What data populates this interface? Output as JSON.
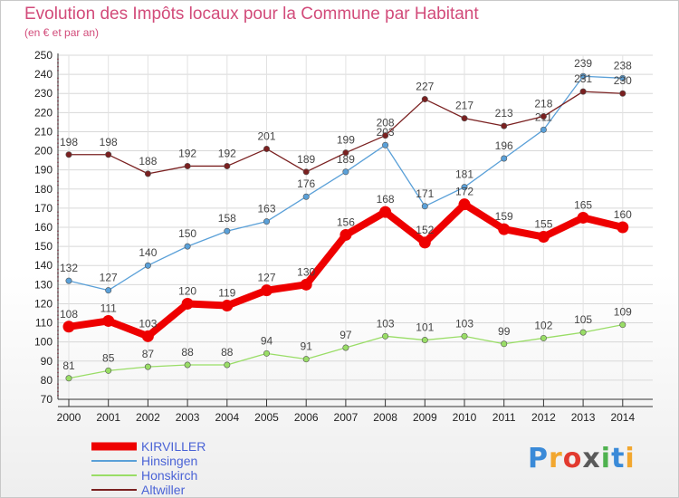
{
  "chart_data": {
    "type": "line",
    "title": "Evolution des Impôts locaux pour la Commune par Habitant",
    "subtitle": "(en € et par an)",
    "x": [
      "2000",
      "2001",
      "2002",
      "2003",
      "2004",
      "2005",
      "2006",
      "2007",
      "2008",
      "2009",
      "2010",
      "2011",
      "2012",
      "2013",
      "2014"
    ],
    "ylim": [
      70,
      250
    ],
    "yticks": [
      70,
      80,
      90,
      100,
      110,
      120,
      130,
      140,
      150,
      160,
      170,
      180,
      190,
      200,
      210,
      220,
      230,
      240,
      250
    ],
    "grid": true,
    "legend_position": "bottom-left",
    "series": [
      {
        "name": "KIRVILLER",
        "color": "#ee0000",
        "highlight": true,
        "values": [
          108,
          111,
          103,
          120,
          119,
          127,
          130,
          156,
          168,
          152,
          172,
          159,
          155,
          165,
          160
        ]
      },
      {
        "name": "Hinsingen",
        "color": "#5aa0d8",
        "highlight": false,
        "values": [
          132,
          127,
          140,
          150,
          158,
          163,
          176,
          189,
          203,
          171,
          181,
          196,
          211,
          239,
          238
        ]
      },
      {
        "name": "Honskirch",
        "color": "#99dd66",
        "highlight": false,
        "values": [
          81,
          85,
          87,
          88,
          88,
          94,
          91,
          97,
          103,
          101,
          103,
          99,
          102,
          105,
          109
        ]
      },
      {
        "name": "Altwiller",
        "color": "#7a2020",
        "highlight": false,
        "values": [
          198,
          198,
          188,
          192,
          192,
          201,
          189,
          199,
          208,
          227,
          217,
          213,
          218,
          231,
          230
        ]
      }
    ]
  },
  "logo": {
    "letters": [
      "P",
      "r",
      "o",
      "x",
      "i",
      "t",
      "i"
    ],
    "colors": [
      "#3a8ad8",
      "#f2a72f",
      "#e23a2f",
      "#5a5a5a",
      "#4fb24f",
      "#3a8ad8",
      "#f2a72f"
    ]
  }
}
